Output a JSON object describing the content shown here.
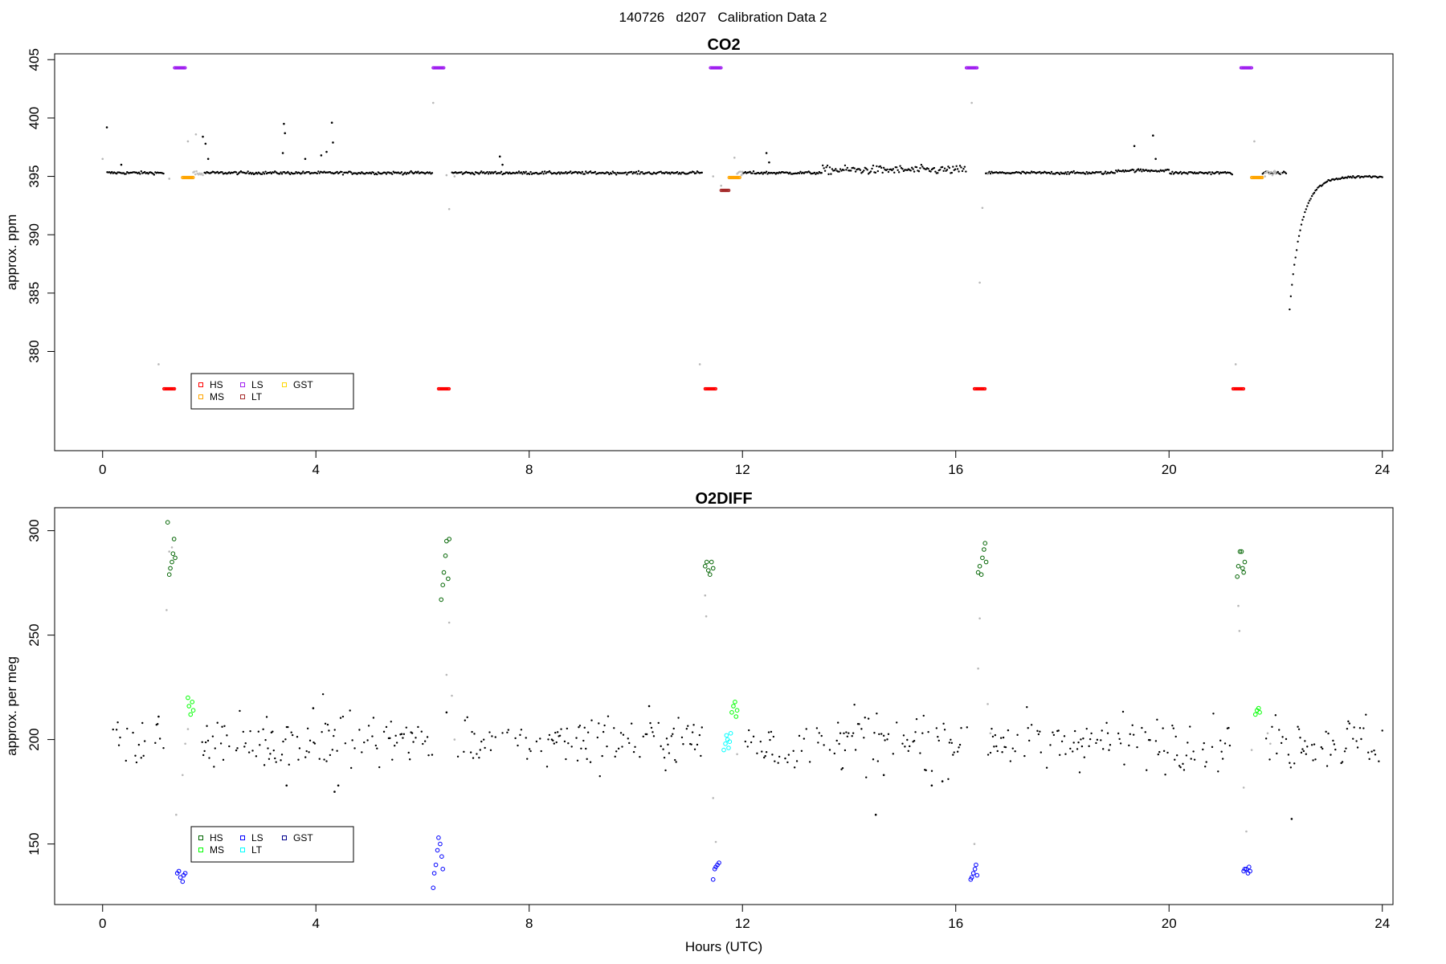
{
  "suptitle": "140726   d207   Calibration Data 2",
  "chart_data": [
    {
      "type": "scatter",
      "title": "CO2",
      "xlabel": "",
      "ylabel": "approx. ppm",
      "xlim": [
        -0.9,
        24.2
      ],
      "ylim": [
        371.5,
        405.5
      ],
      "xticks": [
        "0",
        "4",
        "8",
        "12",
        "16",
        "20",
        "24"
      ],
      "yticks": [
        "380",
        "385",
        "390",
        "395",
        "400",
        "405"
      ],
      "ytick_values": [
        380,
        385,
        390,
        395,
        400,
        405
      ],
      "legend": {
        "position": "bottom-left",
        "entries": [
          {
            "name": "HS",
            "color": "#ff0000"
          },
          {
            "name": "MS",
            "color": "#ffa500"
          },
          {
            "name": "LS",
            "color": "#a020f0"
          },
          {
            "name": "LT",
            "color": "#a52a2a"
          },
          {
            "name": "GST",
            "color": "#ffd700"
          }
        ]
      },
      "calibration_segments": [
        {
          "name": "HS",
          "color": "#ff0000",
          "y": 376.8,
          "ranges": [
            [
              1.15,
              1.35
            ],
            [
              6.3,
              6.5
            ],
            [
              11.3,
              11.5
            ],
            [
              16.35,
              16.55
            ],
            [
              21.2,
              21.4
            ]
          ]
        },
        {
          "name": "LS",
          "color": "#a020f0",
          "y": 404.3,
          "ranges": [
            [
              1.35,
              1.55
            ],
            [
              6.2,
              6.4
            ],
            [
              11.4,
              11.6
            ],
            [
              16.2,
              16.4
            ],
            [
              21.35,
              21.55
            ]
          ]
        },
        {
          "name": "MS",
          "color": "#ffa500",
          "y": 394.9,
          "ranges": [
            [
              1.5,
              1.7
            ],
            [
              11.75,
              11.95
            ],
            [
              21.55,
              21.75
            ]
          ]
        },
        {
          "name": "LT",
          "color": "#a52a2a",
          "y": 393.8,
          "ranges": [
            [
              11.6,
              11.75
            ]
          ]
        }
      ],
      "ambient_series": {
        "color": "#000000",
        "baseline": 395.3,
        "gaps": [
          [
            0.0,
            0.08
          ],
          [
            1.15,
            1.9
          ],
          [
            6.2,
            6.55
          ],
          [
            11.25,
            12.0
          ],
          [
            16.2,
            16.55
          ],
          [
            21.2,
            21.75
          ],
          [
            22.2,
            22.25
          ]
        ],
        "spikes": [
          [
            0.08,
            399.2
          ],
          [
            0.35,
            396.0
          ],
          [
            1.88,
            398.4
          ],
          [
            1.93,
            397.8
          ],
          [
            1.98,
            396.5
          ],
          [
            3.4,
            399.5
          ],
          [
            3.42,
            398.7
          ],
          [
            3.38,
            397.0
          ],
          [
            3.8,
            396.5
          ],
          [
            4.1,
            396.8
          ],
          [
            4.3,
            399.6
          ],
          [
            4.32,
            397.9
          ],
          [
            4.2,
            397.1
          ],
          [
            7.45,
            396.7
          ],
          [
            7.5,
            396.0
          ],
          [
            12.45,
            397.0
          ],
          [
            12.5,
            396.2
          ],
          [
            19.35,
            397.6
          ],
          [
            19.7,
            398.5
          ],
          [
            19.75,
            396.5
          ]
        ],
        "recovery": {
          "start": 22.25,
          "end": 24.0,
          "from": 383.0,
          "to": 395.0
        }
      },
      "transition_points": [
        [
          0.0,
          396.5
        ],
        [
          1.05,
          378.9
        ],
        [
          1.25,
          394.8
        ],
        [
          1.6,
          398.0
        ],
        [
          1.75,
          398.6
        ],
        [
          6.2,
          401.3
        ],
        [
          6.5,
          392.2
        ],
        [
          6.45,
          395.1
        ],
        [
          6.6,
          395.0
        ],
        [
          11.2,
          378.9
        ],
        [
          11.45,
          395.0
        ],
        [
          11.6,
          394.2
        ],
        [
          11.85,
          396.6
        ],
        [
          12.0,
          395.4
        ],
        [
          16.3,
          401.3
        ],
        [
          16.45,
          385.9
        ],
        [
          16.5,
          392.3
        ],
        [
          16.6,
          395.2
        ],
        [
          21.25,
          378.9
        ],
        [
          21.6,
          398.0
        ],
        [
          21.8,
          395.0
        ],
        [
          22.0,
          395.4
        ],
        [
          22.1,
          395.3
        ]
      ]
    },
    {
      "type": "scatter",
      "title": "O2DIFF",
      "xlabel": "Hours (UTC)",
      "ylabel": "approx. per meg",
      "xlim": [
        -0.9,
        24.2
      ],
      "ylim": [
        121,
        311
      ],
      "xticks": [
        "0",
        "4",
        "8",
        "12",
        "16",
        "20",
        "24"
      ],
      "yticks": [
        "150",
        "200",
        "250",
        "300"
      ],
      "ytick_values": [
        150,
        200,
        250,
        300
      ],
      "legend": {
        "position": "bottom-left",
        "entries": [
          {
            "name": "HS",
            "color": "#006400"
          },
          {
            "name": "MS",
            "color": "#00ff00"
          },
          {
            "name": "LS",
            "color": "#0000ff"
          },
          {
            "name": "LT",
            "color": "#00ffff"
          },
          {
            "name": "GST",
            "color": "#00008b"
          }
        ]
      },
      "calibration_points": [
        {
          "name": "HS",
          "color": "#006400",
          "points": [
            [
              1.22,
              304
            ],
            [
              1.25,
              279
            ],
            [
              1.27,
              282
            ],
            [
              1.3,
              285
            ],
            [
              1.32,
              289
            ],
            [
              1.34,
              296
            ],
            [
              1.36,
              287
            ],
            [
              6.35,
              267
            ],
            [
              6.38,
              274
            ],
            [
              6.4,
              280
            ],
            [
              6.43,
              288
            ],
            [
              6.45,
              295
            ],
            [
              6.48,
              277
            ],
            [
              6.5,
              296
            ],
            [
              11.3,
              283
            ],
            [
              11.33,
              285
            ],
            [
              11.36,
              281
            ],
            [
              11.39,
              279
            ],
            [
              11.42,
              285
            ],
            [
              11.45,
              282
            ],
            [
              16.42,
              280
            ],
            [
              16.45,
              283
            ],
            [
              16.48,
              279
            ],
            [
              16.5,
              287
            ],
            [
              16.53,
              291
            ],
            [
              16.55,
              294
            ],
            [
              16.57,
              285
            ],
            [
              21.28,
              278
            ],
            [
              21.3,
              283
            ],
            [
              21.33,
              290
            ],
            [
              21.36,
              290
            ],
            [
              21.38,
              282
            ],
            [
              21.4,
              280
            ],
            [
              21.42,
              285
            ]
          ]
        },
        {
          "name": "MS",
          "color": "#00ff00",
          "points": [
            [
              1.6,
              220
            ],
            [
              1.62,
              216
            ],
            [
              1.65,
              212
            ],
            [
              1.68,
              218
            ],
            [
              1.7,
              214
            ],
            [
              11.8,
              213
            ],
            [
              11.83,
              216
            ],
            [
              11.86,
              218
            ],
            [
              11.88,
              211
            ],
            [
              11.9,
              214
            ],
            [
              21.62,
              212
            ],
            [
              21.65,
              214
            ],
            [
              21.68,
              215
            ],
            [
              21.7,
              213
            ]
          ]
        },
        {
          "name": "LS",
          "color": "#0000ff",
          "points": [
            [
              1.4,
              136
            ],
            [
              1.43,
              137
            ],
            [
              1.46,
              134
            ],
            [
              1.5,
              132
            ],
            [
              1.52,
              135
            ],
            [
              1.55,
              136
            ],
            [
              6.2,
              129
            ],
            [
              6.22,
              136
            ],
            [
              6.25,
              140
            ],
            [
              6.28,
              147
            ],
            [
              6.3,
              153
            ],
            [
              6.33,
              150
            ],
            [
              6.36,
              144
            ],
            [
              6.38,
              138
            ],
            [
              11.45,
              133
            ],
            [
              11.48,
              138
            ],
            [
              11.5,
              139
            ],
            [
              11.53,
              140
            ],
            [
              11.56,
              141
            ],
            [
              16.28,
              133
            ],
            [
              16.3,
              134
            ],
            [
              16.33,
              136
            ],
            [
              16.36,
              138
            ],
            [
              16.38,
              140
            ],
            [
              16.4,
              135
            ],
            [
              21.4,
              137
            ],
            [
              21.42,
              138
            ],
            [
              21.45,
              138
            ],
            [
              21.48,
              136
            ],
            [
              21.5,
              139
            ],
            [
              21.52,
              137
            ]
          ]
        },
        {
          "name": "LT",
          "color": "#00ffff",
          "points": [
            [
              11.65,
              195
            ],
            [
              11.68,
              198
            ],
            [
              11.7,
              202
            ],
            [
              11.72,
              200
            ],
            [
              11.74,
              196
            ],
            [
              11.76,
              199
            ],
            [
              11.78,
              203
            ]
          ]
        }
      ],
      "ambient_series": {
        "color": "#000000",
        "baseline": 199,
        "gaps": [
          [
            0.0,
            0.05
          ],
          [
            1.15,
            1.85
          ],
          [
            6.2,
            6.6
          ],
          [
            11.25,
            12.0
          ],
          [
            16.25,
            16.6
          ],
          [
            21.2,
            21.8
          ]
        ],
        "outliers": [
          [
            4.35,
            175
          ],
          [
            4.42,
            178
          ],
          [
            3.45,
            178
          ],
          [
            14.5,
            164
          ],
          [
            22.3,
            162
          ],
          [
            6.45,
            213
          ],
          [
            1.05,
            211
          ],
          [
            3.95,
            215
          ],
          [
            10.25,
            216
          ],
          [
            15.55,
            178
          ],
          [
            15.75,
            180
          ],
          [
            14.65,
            183
          ]
        ]
      },
      "transition_points": [
        [
          1.2,
          262
        ],
        [
          1.25,
          290
        ],
        [
          1.3,
          292
        ],
        [
          1.38,
          164
        ],
        [
          1.5,
          183
        ],
        [
          1.55,
          198
        ],
        [
          1.6,
          205
        ],
        [
          6.5,
          256
        ],
        [
          6.45,
          231
        ],
        [
          6.55,
          221
        ],
        [
          6.6,
          200
        ],
        [
          11.3,
          269
        ],
        [
          11.32,
          259
        ],
        [
          11.45,
          172
        ],
        [
          11.5,
          151
        ],
        [
          11.9,
          193
        ],
        [
          16.35,
          150
        ],
        [
          16.45,
          258
        ],
        [
          16.42,
          234
        ],
        [
          16.6,
          217
        ],
        [
          16.65,
          203
        ],
        [
          21.3,
          264
        ],
        [
          21.32,
          252
        ],
        [
          21.4,
          177
        ],
        [
          21.45,
          156
        ],
        [
          21.55,
          195
        ],
        [
          21.85,
          203
        ],
        [
          21.9,
          198
        ]
      ]
    }
  ]
}
